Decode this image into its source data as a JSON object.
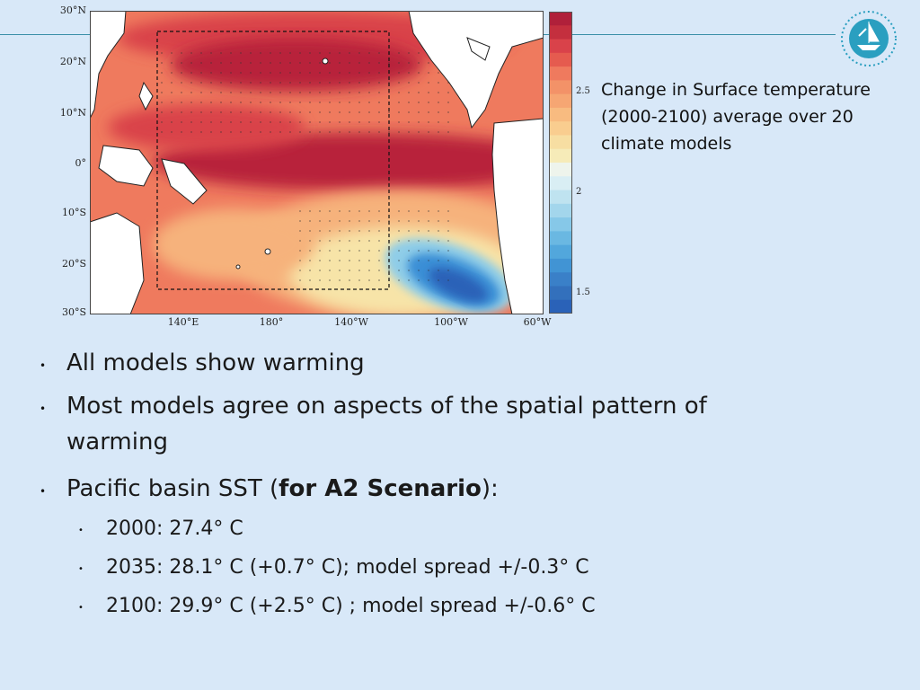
{
  "map": {
    "lat_labels": [
      "30°N",
      "20°N",
      "10°N",
      "0°",
      "10°S",
      "20°S",
      "30°S"
    ],
    "lon_labels": [
      "140°E",
      "180°",
      "140°W",
      "100°W",
      "60°W"
    ],
    "colorbar_ticks": [
      "2.5",
      "2",
      "1.5"
    ],
    "colors": {
      "dark_red": "#b8243a",
      "red": "#d9424a",
      "salmon": "#ef7a5e",
      "peach": "#f6b27c",
      "pale_yellow": "#f7e4a8",
      "light_blue": "#8fcde8",
      "blue": "#3a8fd6",
      "deep_blue": "#2a62b8"
    }
  },
  "caption": "Change in Surface temperature (2000-2100) average over 20 climate models",
  "bullets": [
    {
      "text": "All models show warming"
    },
    {
      "text": "Most models agree on aspects of the spatial pattern of warming"
    },
    {
      "prefix": "Pacific basin SST (",
      "bold": "for A2 Scenario",
      "suffix": "):"
    }
  ],
  "sub_bullets": [
    "2000: 27.4° C",
    "2035: 28.1° C (+0.7° C);   model spread +/-0.3° C",
    "2100: 29.9° C (+2.5° C) ;  model spread +/-0.6° C"
  ]
}
